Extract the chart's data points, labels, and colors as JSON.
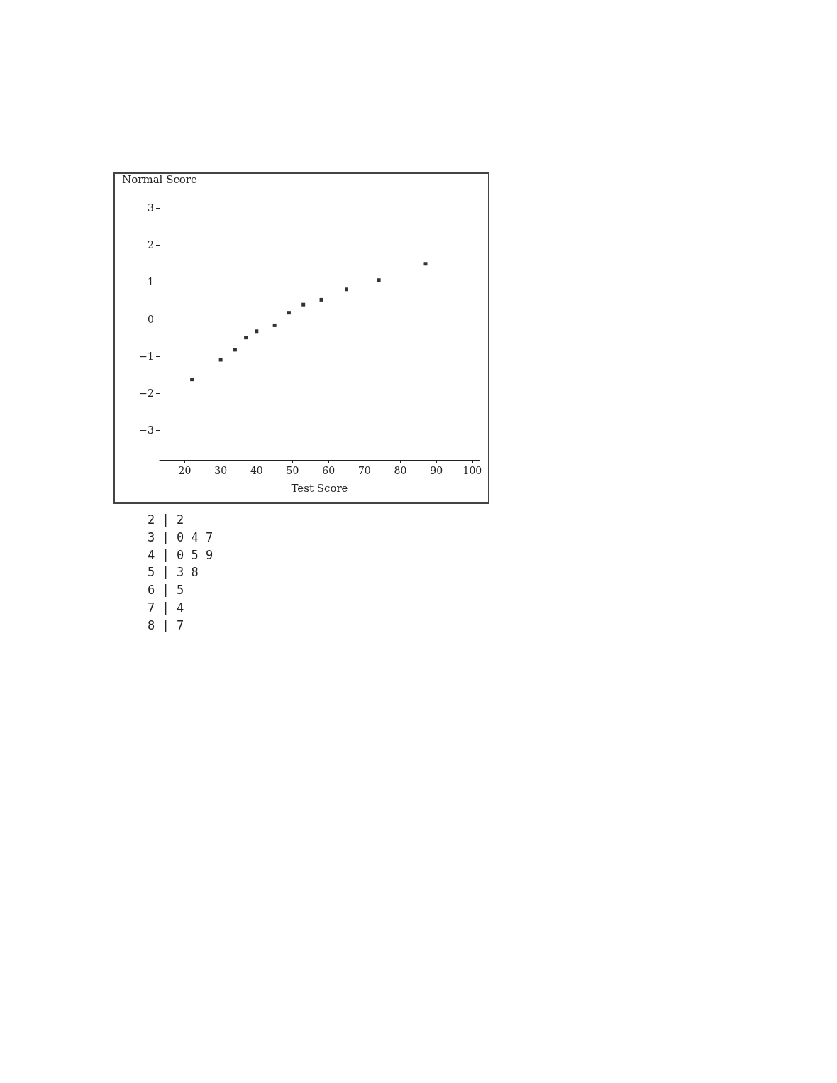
{
  "chart_data": {
    "type": "scatter",
    "xlabel": "Test Score",
    "ylabel": "Normal Score",
    "x": [
      22,
      30,
      34,
      37,
      40,
      45,
      49,
      53,
      58,
      65,
      74,
      87
    ],
    "values": [
      -1.63,
      -1.1,
      -0.83,
      -0.5,
      -0.33,
      -0.17,
      0.17,
      0.39,
      0.52,
      0.8,
      1.05,
      1.49
    ],
    "color": "#000000",
    "marker": "square",
    "xlim": [
      13,
      102
    ],
    "xticks": [
      20,
      30,
      40,
      50,
      60,
      70,
      80,
      90,
      100
    ],
    "ylim": [
      -3.8,
      3.4
    ],
    "yticks": [
      -3,
      -2,
      -1,
      0,
      1,
      2,
      3
    ],
    "grid": false,
    "annotations": [
      "2 | 2",
      "3 | 0 4 7",
      "4 | 0 5 9",
      "5 | 3 8",
      "6 | 5",
      "7 | 4",
      "8 | 7"
    ]
  }
}
